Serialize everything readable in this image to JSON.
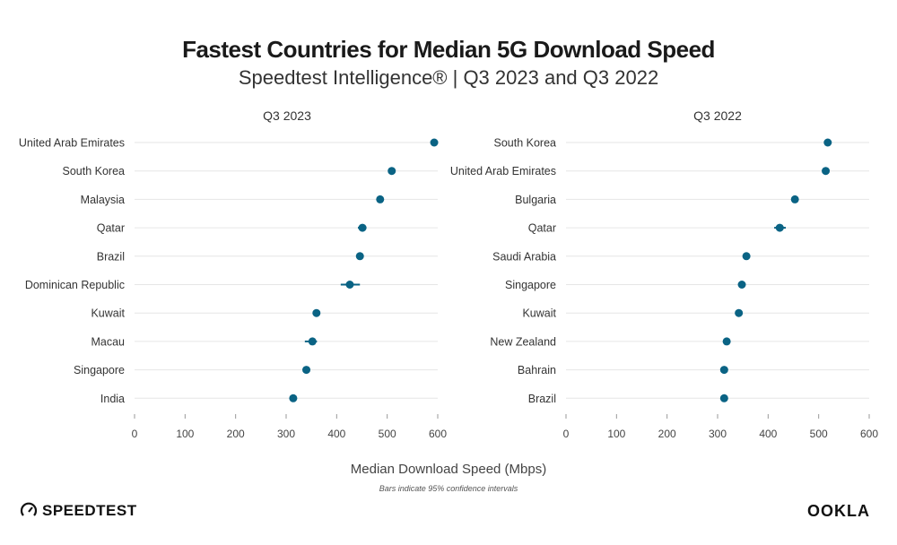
{
  "title": "Fastest Countries for Median 5G Download Speed",
  "subtitle": "Speedtest Intelligence® | Q3 2023 and Q3 2022",
  "footer": {
    "xlabel": "Median Download Speed (Mbps)",
    "note": "Bars indicate 95% confidence intervals",
    "logo_left": "SPEEDTEST",
    "logo_right": "OOKLA"
  },
  "colors": {
    "point": "#0a6384",
    "grid": "#e6e6e6",
    "axis": "#999999"
  },
  "chart_data": [
    {
      "type": "scatter",
      "title": "Q3 2023",
      "xlabel": "Median Download Speed (Mbps)",
      "xlim": [
        0,
        600
      ],
      "xticks": [
        0,
        100,
        200,
        300,
        400,
        500,
        600
      ],
      "categories": [
        "United Arab Emirates",
        "South Korea",
        "Malaysia",
        "Qatar",
        "Brazil",
        "Dominican Republic",
        "Kuwait",
        "Macau",
        "Singapore",
        "India"
      ],
      "values": [
        593,
        509,
        486,
        451,
        446,
        426,
        360,
        352,
        340,
        314
      ],
      "ci_low": [
        591,
        507,
        484,
        442,
        444,
        408,
        358,
        337,
        338,
        312
      ],
      "ci_high": [
        595,
        511,
        488,
        459,
        448,
        446,
        362,
        361,
        342,
        316
      ]
    },
    {
      "type": "scatter",
      "title": "Q3 2022",
      "xlabel": "Median Download Speed (Mbps)",
      "xlim": [
        0,
        600
      ],
      "xticks": [
        0,
        100,
        200,
        300,
        400,
        500,
        600
      ],
      "categories": [
        "South Korea",
        "United Arab Emirates",
        "Bulgaria",
        "Qatar",
        "Saudi Arabia",
        "Singapore",
        "Kuwait",
        "New Zealand",
        "Bahrain",
        "Brazil"
      ],
      "values": [
        518,
        514,
        453,
        423,
        357,
        348,
        342,
        318,
        313,
        313
      ],
      "ci_low": [
        511,
        512,
        451,
        412,
        355,
        346,
        340,
        316,
        311,
        311
      ],
      "ci_high": [
        525,
        516,
        455,
        435,
        359,
        350,
        344,
        320,
        315,
        315
      ]
    }
  ]
}
